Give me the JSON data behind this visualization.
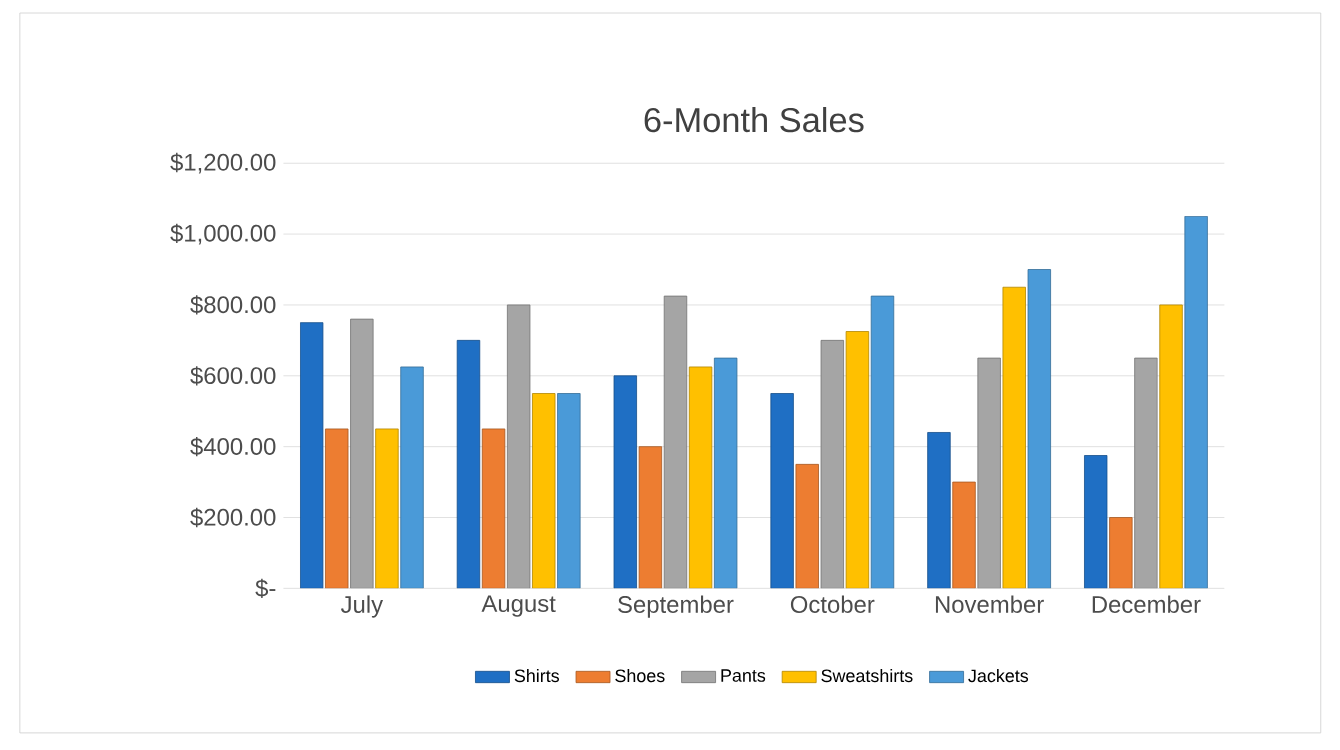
{
  "chart_data": {
    "type": "bar",
    "title": "6-Month Sales",
    "categories": [
      "July",
      "August",
      "September",
      "October",
      "November",
      "December"
    ],
    "series": [
      {
        "name": "Shirts",
        "color": "#1f6fc4",
        "values": [
          750,
          700,
          600,
          550,
          440,
          375
        ]
      },
      {
        "name": "Shoes",
        "color": "#ed7d31",
        "values": [
          450,
          450,
          400,
          350,
          300,
          200
        ]
      },
      {
        "name": "Pants",
        "color": "#a5a5a5",
        "values": [
          760,
          800,
          825,
          700,
          650,
          650
        ]
      },
      {
        "name": "Sweatshirts",
        "color": "#ffc000",
        "values": [
          450,
          550,
          625,
          725,
          850,
          800
        ]
      },
      {
        "name": "Jackets",
        "color": "#4a9ad8",
        "values": [
          625,
          550,
          650,
          825,
          900,
          1050
        ]
      }
    ],
    "ylim": [
      0,
      1200
    ],
    "yticks": [
      {
        "value": 0,
        "label": "$-"
      },
      {
        "value": 200,
        "label": "$200.00"
      },
      {
        "value": 400,
        "label": "$400.00"
      },
      {
        "value": 600,
        "label": "$600.00"
      },
      {
        "value": 800,
        "label": "$800.00"
      },
      {
        "value": 1000,
        "label": "$1,000.00"
      },
      {
        "value": 1200,
        "label": "$1,200.00"
      }
    ],
    "grid": "y",
    "legend": "bottom"
  }
}
